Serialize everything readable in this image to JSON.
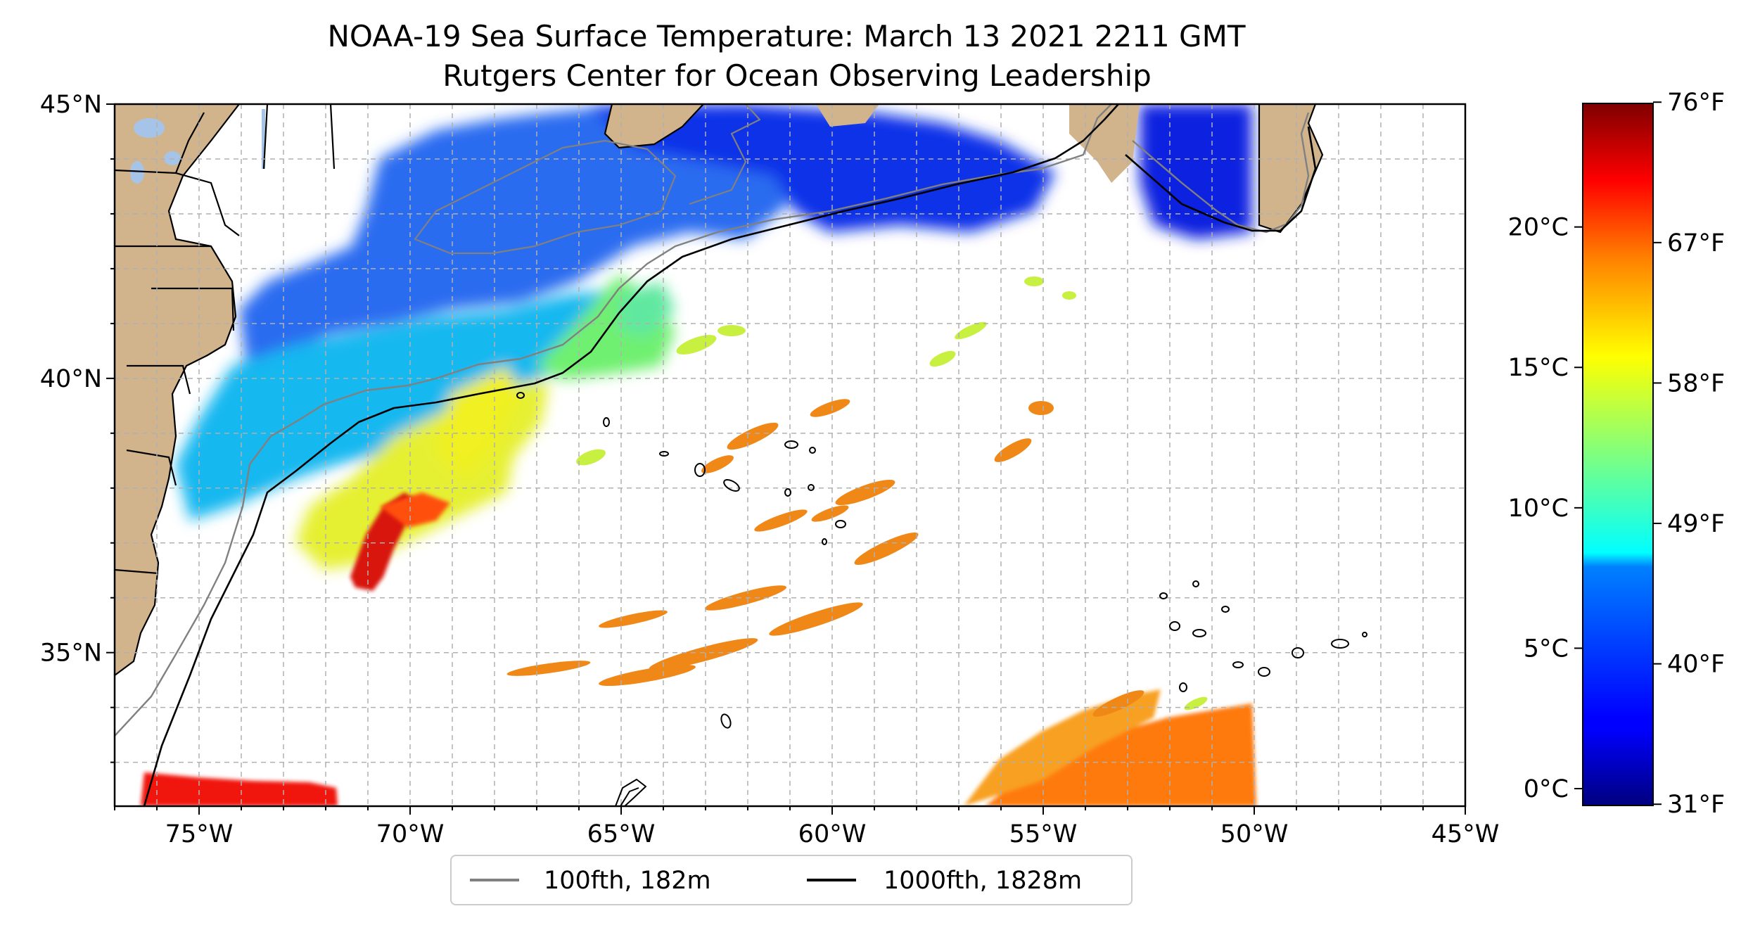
{
  "title": "NOAA-19 Sea Surface Temperature: March 13 2021 2211 GMT",
  "subtitle": "Rutgers Center for Ocean Observing Leadership",
  "map": {
    "lon_range": [
      -77,
      -45
    ],
    "lat_range": [
      32.2,
      45
    ],
    "lon_ticks": [
      {
        "value": -75,
        "label": "75°W"
      },
      {
        "value": -70,
        "label": "70°W"
      },
      {
        "value": -65,
        "label": "65°W"
      },
      {
        "value": -60,
        "label": "60°W"
      },
      {
        "value": -55,
        "label": "55°W"
      },
      {
        "value": -50,
        "label": "50°W"
      },
      {
        "value": -45,
        "label": "45°W"
      }
    ],
    "lat_ticks": [
      {
        "value": 45,
        "label": "45°N"
      },
      {
        "value": 40,
        "label": "40°N"
      },
      {
        "value": 35,
        "label": "35°N"
      }
    ],
    "grid": true,
    "colors": {
      "land": "#d2b48c",
      "lakes": "#a6c4e8",
      "isobath_100": "#808080",
      "isobath_1000": "#000000"
    }
  },
  "legend": {
    "placement": "bottom-center",
    "items": [
      {
        "label": "100fth, 182m",
        "color": "#808080"
      },
      {
        "label": "1000fth, 1828m",
        "color": "#000000"
      }
    ]
  },
  "colorbar": {
    "colormap": "jet",
    "range_c": [
      -0.6,
      24.4
    ],
    "celsius_ticks": [
      {
        "value": 0,
        "label": "0°C"
      },
      {
        "value": 5,
        "label": "5°C"
      },
      {
        "value": 10,
        "label": "10°C"
      },
      {
        "value": 15,
        "label": "15°C"
      },
      {
        "value": 20,
        "label": "20°C"
      }
    ],
    "fahrenheit_ticks": [
      {
        "value": 31,
        "label": "31°F"
      },
      {
        "value": 40,
        "label": "40°F"
      },
      {
        "value": 49,
        "label": "49°F"
      },
      {
        "value": 58,
        "label": "58°F"
      },
      {
        "value": 67,
        "label": "67°F"
      },
      {
        "value": 76,
        "label": "76°F"
      }
    ]
  }
}
